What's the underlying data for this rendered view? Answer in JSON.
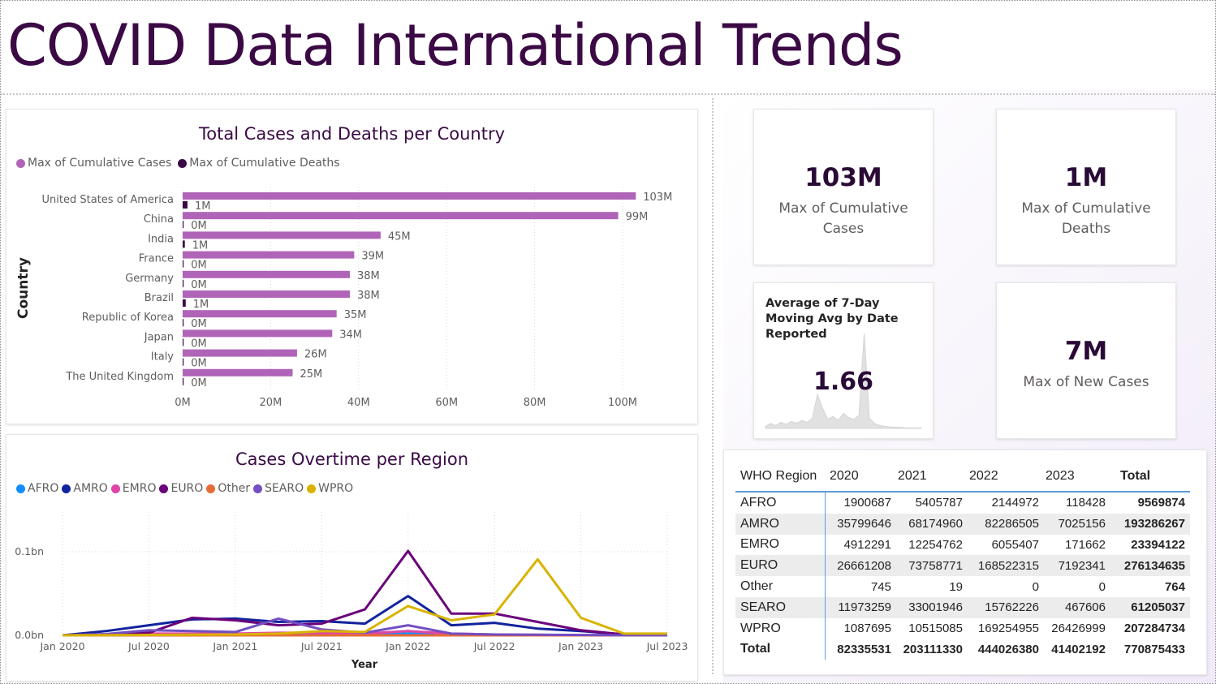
{
  "page": {
    "title": "COVID Data International Trends"
  },
  "bar_chart": {
    "title": "Total Cases and Deaths per Country",
    "legend": [
      {
        "label": "Max of Cumulative Cases",
        "color": "#b064b8"
      },
      {
        "label": "Max of Cumulative Deaths",
        "color": "#3b0a45"
      }
    ],
    "y_axis_title": "Country"
  },
  "line_chart": {
    "title": "Cases Overtime per Region",
    "legend": [
      {
        "label": "AFRO",
        "color": "#118dff"
      },
      {
        "label": "AMRO",
        "color": "#12239e"
      },
      {
        "label": "EMRO",
        "color": "#e044a7"
      },
      {
        "label": "EURO",
        "color": "#6b007b"
      },
      {
        "label": "Other",
        "color": "#e66c37"
      },
      {
        "label": "SEARO",
        "color": "#744ec2"
      },
      {
        "label": "WPRO",
        "color": "#d9b300"
      }
    ],
    "x_axis_title": "Year"
  },
  "chart_data": [
    {
      "type": "bar",
      "title": "Total Cases and Deaths per Country",
      "orientation": "horizontal",
      "ylabel": "Country",
      "categories": [
        "United States of America",
        "China",
        "India",
        "France",
        "Germany",
        "Brazil",
        "Republic of Korea",
        "Japan",
        "Italy",
        "The United Kingdom"
      ],
      "series": [
        {
          "name": "Max of Cumulative Cases",
          "unit": "M",
          "values": [
            103,
            99,
            45,
            39,
            38,
            38,
            35,
            34,
            26,
            25
          ],
          "labels": [
            "103M",
            "99M",
            "45M",
            "39M",
            "38M",
            "38M",
            "35M",
            "34M",
            "26M",
            "25M"
          ]
        },
        {
          "name": "Max of Cumulative Deaths",
          "unit": "M",
          "values": [
            1.1,
            0.1,
            0.5,
            0.2,
            0.2,
            0.7,
            0.03,
            0.07,
            0.2,
            0.2
          ],
          "labels": [
            "1M",
            "0M",
            "1M",
            "0M",
            "0M",
            "1M",
            "0M",
            "0M",
            "0M",
            "0M"
          ]
        }
      ],
      "xlim": [
        0,
        110
      ],
      "xticks": [
        0,
        20,
        40,
        60,
        80,
        100
      ],
      "xtick_labels": [
        "0M",
        "20M",
        "40M",
        "60M",
        "80M",
        "100M"
      ]
    },
    {
      "type": "line",
      "title": "Cases Overtime per Region",
      "xlabel": "Year",
      "ylabel": "",
      "x": [
        "2020-01",
        "2020-04",
        "2020-07",
        "2020-10",
        "2021-01",
        "2021-04",
        "2021-07",
        "2021-10",
        "2022-01",
        "2022-04",
        "2022-07",
        "2022-10",
        "2023-01",
        "2023-04",
        "2023-07"
      ],
      "xtick_labels": [
        "Jan 2020",
        "Jul 2020",
        "Jan 2021",
        "Jul 2021",
        "Jan 2022",
        "Jul 2022",
        "Jan 2023",
        "Jul 2023"
      ],
      "ylim": [
        0,
        0.14
      ],
      "yticks": [
        0,
        0.1
      ],
      "ytick_labels": [
        "0.0bn",
        "0.1bn"
      ],
      "unit": "bn",
      "series": [
        {
          "name": "AFRO",
          "values": [
            0.0,
            0.0003,
            0.001,
            0.0008,
            0.002,
            0.001,
            0.003,
            0.001,
            0.002,
            0.0005,
            0.0003,
            0.0002,
            0.0001,
            0.0001,
            0.0
          ]
        },
        {
          "name": "AMRO",
          "values": [
            0.0,
            0.005,
            0.012,
            0.019,
            0.02,
            0.016,
            0.017,
            0.014,
            0.047,
            0.012,
            0.015,
            0.008,
            0.005,
            0.001,
            0.001
          ]
        },
        {
          "name": "EMRO",
          "values": [
            0.0,
            0.0005,
            0.002,
            0.002,
            0.002,
            0.003,
            0.003,
            0.002,
            0.005,
            0.002,
            0.001,
            0.0006,
            0.0003,
            0.0001,
            0.0
          ]
        },
        {
          "name": "EURO",
          "values": [
            0.0,
            0.001,
            0.003,
            0.021,
            0.018,
            0.012,
            0.014,
            0.031,
            0.101,
            0.026,
            0.026,
            0.016,
            0.006,
            0.001,
            0.0
          ]
        },
        {
          "name": "Other",
          "values": [
            0.0,
            0.0,
            0.0,
            0.0,
            0.0,
            0.0,
            0.0,
            0.0,
            0.0,
            0.0,
            0.0,
            0.0,
            0.0,
            0.0,
            0.0
          ]
        },
        {
          "name": "SEARO",
          "values": [
            0.0,
            0.0015,
            0.006,
            0.005,
            0.004,
            0.02,
            0.007,
            0.003,
            0.012,
            0.002,
            0.001,
            0.0008,
            0.0004,
            0.0001,
            0.0
          ]
        },
        {
          "name": "WPRO",
          "values": [
            0.0,
            0.0002,
            0.0005,
            0.0008,
            0.001,
            0.002,
            0.005,
            0.004,
            0.035,
            0.018,
            0.025,
            0.091,
            0.021,
            0.002,
            0.002
          ]
        }
      ]
    },
    {
      "type": "area",
      "title": "Average of 7-Day Moving Avg by Date Reported",
      "x": [
        0,
        1,
        2,
        3,
        4,
        5,
        6,
        7,
        8,
        9,
        10,
        11,
        12,
        13,
        14,
        15,
        16,
        17,
        18,
        19,
        20,
        21,
        22,
        23,
        24,
        25,
        26,
        27,
        28,
        29,
        30
      ],
      "values": [
        0.2,
        0.5,
        0.3,
        0.6,
        0.4,
        0.7,
        0.5,
        0.8,
        0.6,
        1.0,
        3.4,
        2.0,
        0.9,
        1.2,
        0.8,
        1.5,
        1.1,
        0.9,
        1.3,
        9.5,
        1.0,
        0.5,
        0.3,
        0.2,
        0.15,
        0.1,
        0.1,
        0.05,
        0.05,
        0.05,
        0.05
      ],
      "value_label": "1.66"
    }
  ],
  "kpis": {
    "cases": {
      "value": "103M",
      "label": "Max of Cumulative Cases"
    },
    "deaths": {
      "value": "1M",
      "label": "Max of Cumulative Deaths"
    },
    "moving_avg": {
      "title": "Average of 7-Day Moving Avg by Date Reported",
      "value": "1.66"
    },
    "new_cases": {
      "value": "7M",
      "label": "Max of New Cases"
    }
  },
  "table": {
    "headers": [
      "WHO Region",
      "2020",
      "2021",
      "2022",
      "2023",
      "Total"
    ],
    "rows": [
      [
        "AFRO",
        "1900687",
        "5405787",
        "2144972",
        "118428",
        "9569874"
      ],
      [
        "AMRO",
        "35799646",
        "68174960",
        "82286505",
        "7025156",
        "193286267"
      ],
      [
        "EMRO",
        "4912291",
        "12254762",
        "6055407",
        "171662",
        "23394122"
      ],
      [
        "EURO",
        "26661208",
        "73758771",
        "168522315",
        "7192341",
        "276134635"
      ],
      [
        "Other",
        "745",
        "19",
        "0",
        "0",
        "764"
      ],
      [
        "SEARO",
        "11973259",
        "33001946",
        "15762226",
        "467606",
        "61205037"
      ],
      [
        "WPRO",
        "1087695",
        "10515085",
        "169254955",
        "26426999",
        "207284734"
      ]
    ],
    "total": [
      "Total",
      "82335531",
      "203111330",
      "444026380",
      "41402192",
      "770875433"
    ]
  }
}
